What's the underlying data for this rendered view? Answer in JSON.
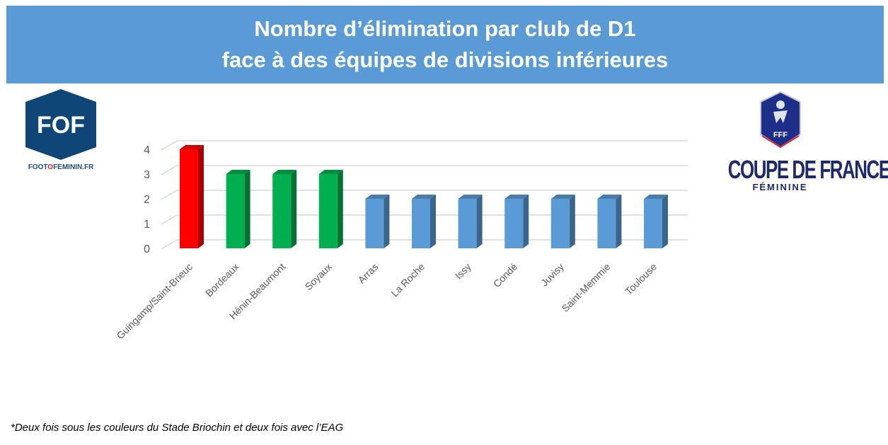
{
  "banner": {
    "line1": "Nombre d’élimination par club de D1",
    "line2": "face à des équipes de divisions inférieures"
  },
  "logos": {
    "fof": "FOF",
    "fof_url_a": "FOOT",
    "fof_url_o": "O",
    "fof_url_b": "FEMININ.FR",
    "fff": "FFF",
    "cdf": "COUPE DE FRANCE",
    "cdf_sub": "FÉMININE"
  },
  "footnote": "*Deux fois sous les couleurs du Stade Briochin et deux fois avec l’EAG",
  "chart_data": {
    "type": "bar",
    "style": "3d-column",
    "categories": [
      "Guingamp/Saint-Brieuc",
      "Bordeaux",
      "Hénin-Beaumont",
      "Soyaux",
      "Arras",
      "La Roche",
      "Issy",
      "Condé",
      "Juvisy",
      "Saint-Memmie",
      "Toulouse"
    ],
    "values": [
      4,
      3,
      3,
      3,
      2,
      2,
      2,
      2,
      2,
      2,
      2
    ],
    "colors": [
      "#ff0000",
      "#00b050",
      "#00b050",
      "#00b050",
      "#5b9bd5",
      "#5b9bd5",
      "#5b9bd5",
      "#5b9bd5",
      "#5b9bd5",
      "#5b9bd5",
      "#5b9bd5"
    ],
    "yticks": [
      0,
      1,
      2,
      3,
      4
    ],
    "ylim": [
      0,
      4
    ],
    "grid": true,
    "title": "",
    "xlabel": "",
    "ylabel": ""
  }
}
